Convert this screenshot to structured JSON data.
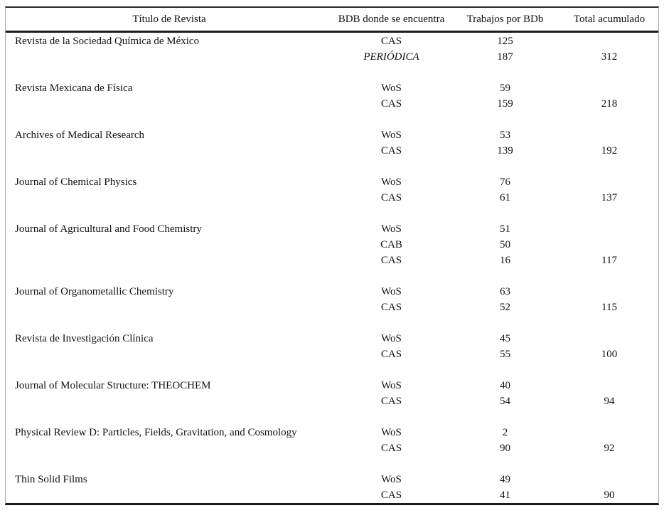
{
  "table": {
    "headers": [
      {
        "label": "Título de Revista"
      },
      {
        "label": "BDB donde se encuentra"
      },
      {
        "label": "Trabajos por BDb"
      },
      {
        "label": "Total acumulado"
      }
    ],
    "rows": [
      {
        "title": "Revista de la Sociedad Química de México",
        "entries": [
          {
            "db": "CAS",
            "works": "125",
            "italic": false
          },
          {
            "db": "PERIÓDICA",
            "works": "187",
            "italic": true
          }
        ],
        "total": "312"
      },
      {
        "title": "Revista Mexicana de Física",
        "entries": [
          {
            "db": "WoS",
            "works": "59",
            "italic": false
          },
          {
            "db": "CAS",
            "works": "159",
            "italic": false
          }
        ],
        "total": "218"
      },
      {
        "title": "Archives of Medical Research",
        "entries": [
          {
            "db": "WoS",
            "works": "53",
            "italic": false
          },
          {
            "db": "CAS",
            "works": "139",
            "italic": false
          }
        ],
        "total": "192"
      },
      {
        "title": "Journal of Chemical Physics",
        "entries": [
          {
            "db": "WoS",
            "works": "76",
            "italic": false
          },
          {
            "db": "CAS",
            "works": "61",
            "italic": false
          }
        ],
        "total": "137"
      },
      {
        "title": "Journal of Agricultural and Food Chemistry",
        "entries": [
          {
            "db": "WoS",
            "works": "51",
            "italic": false
          },
          {
            "db": "CAB",
            "works": "50",
            "italic": false
          },
          {
            "db": "CAS",
            "works": "16",
            "italic": false
          }
        ],
        "total": "117"
      },
      {
        "title": "Journal of Organometallic Chemistry",
        "entries": [
          {
            "db": "WoS",
            "works": "63",
            "italic": false
          },
          {
            "db": "CAS",
            "works": "52",
            "italic": false
          }
        ],
        "total": "115"
      },
      {
        "title": "Revista de Investigación Clínica",
        "entries": [
          {
            "db": "WoS",
            "works": "45",
            "italic": false
          },
          {
            "db": "CAS",
            "works": "55",
            "italic": false
          }
        ],
        "total": "100"
      },
      {
        "title": "Journal of Molecular Structure: THEOCHEM",
        "entries": [
          {
            "db": "WoS",
            "works": "40",
            "italic": false
          },
          {
            "db": "CAS",
            "works": "54",
            "italic": false
          }
        ],
        "total": "94"
      },
      {
        "title": "Physical Review D: Particles, Fields, Gravitation, and Cosmology",
        "entries": [
          {
            "db": "WoS",
            "works": "2",
            "italic": false
          },
          {
            "db": "CAS",
            "works": "90",
            "italic": false
          }
        ],
        "total": "92"
      },
      {
        "title": "Thin Solid Films",
        "entries": [
          {
            "db": "WoS",
            "works": "49",
            "italic": false
          },
          {
            "db": "CAS",
            "works": "41",
            "italic": false
          }
        ],
        "total": "90"
      }
    ],
    "colors": {
      "text": "#111111",
      "rule_heavy": "#1a1a1a",
      "rule_light": "#a8a8a8"
    }
  }
}
